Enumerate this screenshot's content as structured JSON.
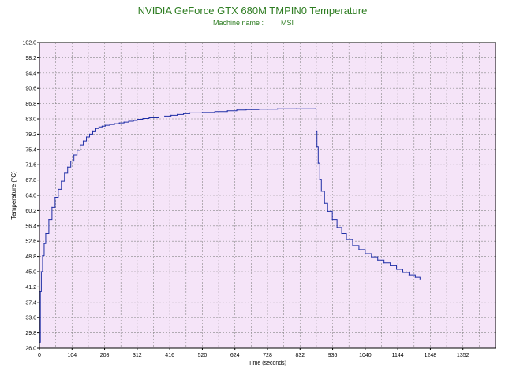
{
  "title": "NVIDIA GeForce GTX 680M TMPIN0 Temperature",
  "machine_label": "Machine name :",
  "machine_value": "MSI",
  "colors": {
    "title": "#2e7d22",
    "plot_background": "#f5e4f8",
    "grid": "#888888",
    "line": "#1f2ea6",
    "axis_text": "#000000"
  },
  "chart_data": {
    "type": "line",
    "title": "NVIDIA GeForce GTX 680M TMPIN0 Temperature",
    "xlabel": "Time (seconds)",
    "ylabel": "Temperature (°C)",
    "xlim": [
      0,
      1456
    ],
    "ylim": [
      26.0,
      102.0
    ],
    "grid": true,
    "x_ticks": [
      "0",
      "104",
      "208",
      "312",
      "416",
      "520",
      "624",
      "728",
      "832",
      "936",
      "1040",
      "1144",
      "1248",
      "1352"
    ],
    "y_ticks": [
      "26.0",
      "29.8",
      "33.6",
      "37.4",
      "41.2",
      "45.0",
      "48.8",
      "52.6",
      "56.4",
      "60.2",
      "64.0",
      "67.8",
      "71.6",
      "75.4",
      "79.2",
      "83.0",
      "86.8",
      "90.6",
      "94.4",
      "98.2",
      "102.0"
    ],
    "series": [
      {
        "x": [
          0,
          3,
          6,
          10,
          15,
          20,
          30,
          40,
          50,
          60,
          70,
          80,
          90,
          100,
          110,
          120,
          130,
          140,
          150,
          160,
          170,
          180,
          190,
          200,
          210,
          225,
          240,
          255,
          270,
          285,
          300,
          312,
          330,
          350,
          380,
          400,
          420,
          440,
          460,
          480,
          520,
          560,
          600,
          630,
          660,
          700,
          760,
          820,
          860,
          880,
          883,
          886,
          890,
          895,
          900,
          910,
          920,
          935,
          950,
          965,
          980,
          1000,
          1020,
          1040,
          1060,
          1080,
          1100,
          1120,
          1140,
          1160,
          1180,
          1200,
          1215
        ],
        "values": [
          27.5,
          40.0,
          45.0,
          49.0,
          52.0,
          54.5,
          58.0,
          61.0,
          63.5,
          65.5,
          67.5,
          69.5,
          71.0,
          72.5,
          74.0,
          75.2,
          76.5,
          77.5,
          78.5,
          79.2,
          80.0,
          80.6,
          81.0,
          81.2,
          81.4,
          81.6,
          81.8,
          82.0,
          82.2,
          82.4,
          82.6,
          82.9,
          83.1,
          83.3,
          83.5,
          83.7,
          83.9,
          84.1,
          84.3,
          84.5,
          84.6,
          84.8,
          85.0,
          85.2,
          85.3,
          85.4,
          85.5,
          85.5,
          85.5,
          85.5,
          80.0,
          76.0,
          72.0,
          68.0,
          65.0,
          62.0,
          60.0,
          58.0,
          56.0,
          54.5,
          53.0,
          51.5,
          50.5,
          49.5,
          48.7,
          47.9,
          47.2,
          46.5,
          45.6,
          44.8,
          44.2,
          43.6,
          43.2
        ]
      }
    ]
  }
}
